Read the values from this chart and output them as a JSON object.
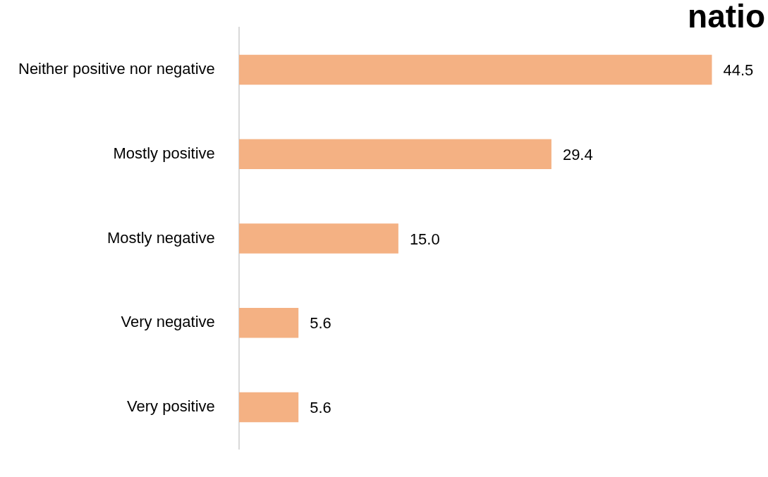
{
  "chart_data": {
    "type": "bar",
    "orientation": "horizontal",
    "title": "natio",
    "categories": [
      "Neither positive nor negative",
      "Mostly positive",
      "Mostly negative",
      "Very negative",
      "Very positive"
    ],
    "values": [
      44.5,
      29.4,
      15.0,
      5.6,
      5.6
    ],
    "value_labels": [
      "44.5",
      "29.4",
      "15.0",
      "5.6",
      "5.6"
    ],
    "color": "#f4b183",
    "legend": false
  }
}
